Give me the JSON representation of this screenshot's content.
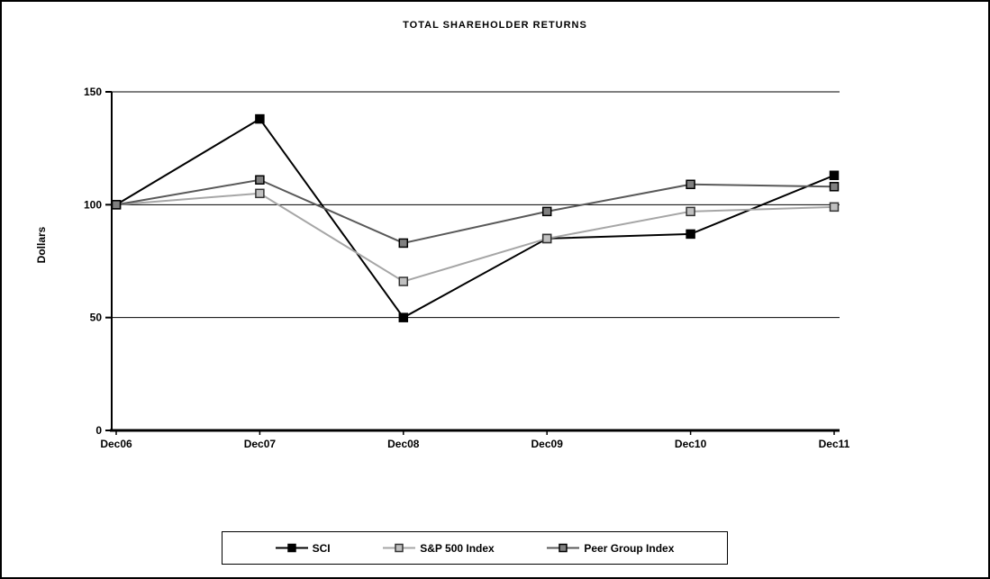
{
  "window": {
    "background": "#ffffff",
    "border_color": "#000000"
  },
  "chart_data": {
    "type": "line",
    "title": "TOTAL SHAREHOLDER RETURNS",
    "xlabel": "",
    "ylabel": "Dollars",
    "categories": [
      "Dec06",
      "Dec07",
      "Dec08",
      "Dec09",
      "Dec10",
      "Dec11"
    ],
    "series": [
      {
        "name": "SCI",
        "color": "#000000",
        "marker_fill": "#000000",
        "marker_edge": "#000000",
        "values": [
          100,
          138,
          50,
          85,
          87,
          113
        ]
      },
      {
        "name": "S&P 500 Index",
        "color": "#a6a6a6",
        "marker_fill": "#c0c0c0",
        "marker_edge": "#333333",
        "values": [
          100,
          105,
          66,
          85,
          97,
          99
        ]
      },
      {
        "name": "Peer Group Index",
        "color": "#595959",
        "marker_fill": "#808080",
        "marker_edge": "#000000",
        "values": [
          100,
          111,
          83,
          97,
          109,
          108
        ]
      }
    ],
    "ylim": [
      0,
      150
    ],
    "yticks": [
      0,
      50,
      100,
      150
    ],
    "grid": "horizontal",
    "axis_color": "#000000",
    "legend_position": "bottom"
  }
}
